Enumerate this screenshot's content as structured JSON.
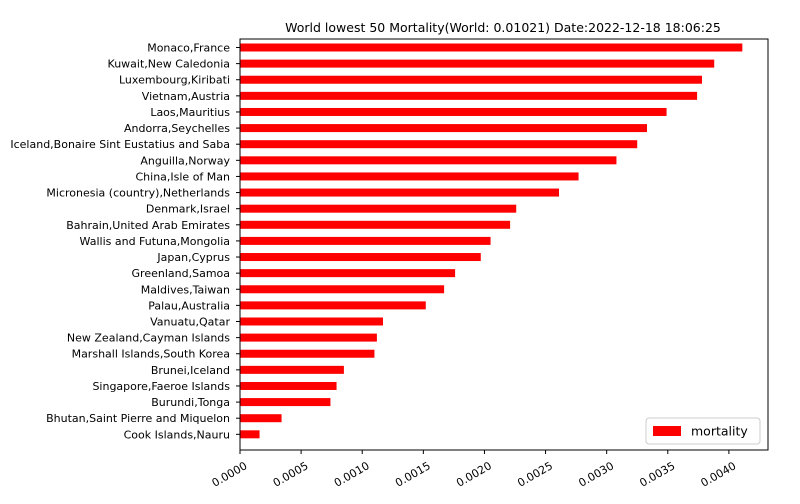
{
  "chart_data": {
    "type": "bar",
    "orientation": "horizontal",
    "title": "World lowest 50 Mortality(World: 0.01021) Date:2022-12-18 18:06:25",
    "xlabel": "",
    "ylabel": "",
    "xlim": [
      0,
      0.00432
    ],
    "x_ticks": [
      "0.0000",
      "0.0005",
      "0.0010",
      "0.0015",
      "0.0020",
      "0.0025",
      "0.0030",
      "0.0035",
      "0.0040"
    ],
    "x_tick_values": [
      0,
      0.0005,
      0.001,
      0.0015,
      0.002,
      0.0025,
      0.003,
      0.0035,
      0.004
    ],
    "categories": [
      "Monaco,France",
      "Kuwait,New Caledonia",
      "Luxembourg,Kiribati",
      "Vietnam,Austria",
      "Laos,Mauritius",
      "Andorra,Seychelles",
      "Iceland,Bonaire Sint Eustatius and Saba",
      "Anguilla,Norway",
      "China,Isle of Man",
      "Micronesia (country),Netherlands",
      "Denmark,Israel",
      "Bahrain,United Arab Emirates",
      "Wallis and Futuna,Mongolia",
      "Japan,Cyprus",
      "Greenland,Samoa",
      "Maldives,Taiwan",
      "Palau,Australia",
      "Vanuatu,Qatar",
      "New Zealand,Cayman Islands",
      "Marshall Islands,South Korea",
      "Brunei,Iceland",
      "Singapore,Faeroe Islands",
      "Burundi,Tonga",
      "Bhutan,Saint Pierre and Miquelon",
      "Cook Islands,Nauru"
    ],
    "series": [
      {
        "name": "mortality",
        "color": "#ff0000",
        "values": [
          0.00411,
          0.00388,
          0.00378,
          0.00374,
          0.00349,
          0.00333,
          0.00325,
          0.00308,
          0.00277,
          0.00261,
          0.00226,
          0.00221,
          0.00205,
          0.00197,
          0.00176,
          0.00167,
          0.00152,
          0.00117,
          0.00112,
          0.0011,
          0.00085,
          0.00079,
          0.00074,
          0.00034,
          0.00016
        ]
      }
    ],
    "legend": {
      "position": "lower-right",
      "entries": [
        "mortality"
      ]
    },
    "grid": false
  }
}
